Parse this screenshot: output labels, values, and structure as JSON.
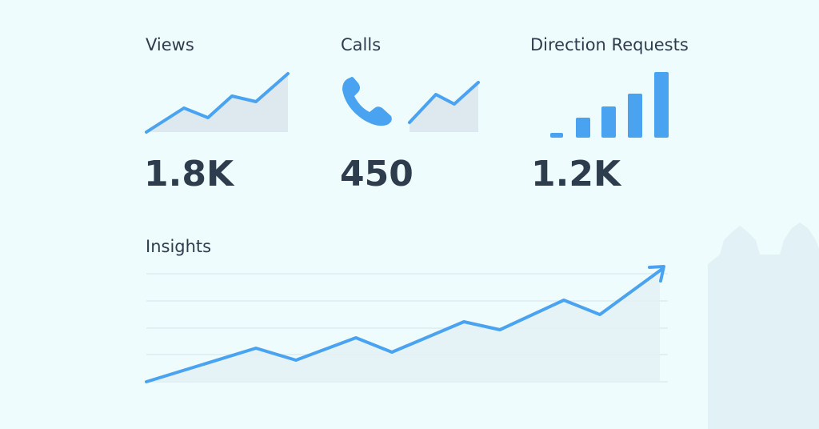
{
  "metrics": [
    {
      "label": "Views",
      "value": "1.8K"
    },
    {
      "label": "Calls",
      "value": "450"
    },
    {
      "label": "Direction Requests",
      "value": "1.2K"
    }
  ],
  "insights": {
    "title": "Insights"
  }
}
